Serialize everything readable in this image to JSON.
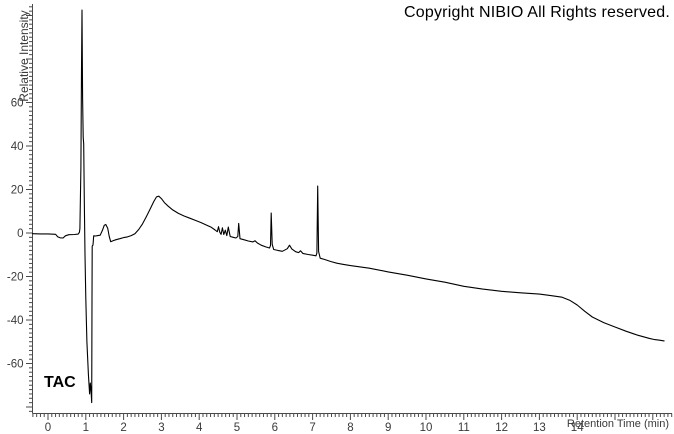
{
  "header": {
    "copyright": "Copyright NIBIO All Rights reserved."
  },
  "labels": {
    "sample": "TAC",
    "y_axis": "Relative Intensity",
    "x_axis": "Retention Time (min)"
  },
  "colors": {
    "background": "#ffffff",
    "trace": "#000000",
    "axis": "#4a4a4a",
    "tick": "#4a4a4a",
    "tick_label": "#3a3a3a",
    "annotation": "#000000"
  },
  "chart_data": {
    "type": "line",
    "title": "",
    "xlabel": "Retention Time (min)",
    "ylabel": "Relative Intensity",
    "xlim": [
      -0.41,
      16.55
    ],
    "ylim": [
      -83,
      105
    ],
    "grid": false,
    "legend": "none",
    "x_labeled_ticks": [
      0,
      1,
      2,
      3,
      4,
      5,
      6,
      7,
      8,
      9,
      10,
      11,
      12,
      13,
      14
    ],
    "x_major_tick_step": 1,
    "x_minor_tick_step": 0.1,
    "y_labeled_ticks": [
      -60,
      -40,
      -20,
      0,
      20,
      40,
      60
    ],
    "y_major_tick_step": 20,
    "y_minor_tick_step": 2,
    "series": [
      {
        "name": "TAC",
        "points": [
          [
            -0.41,
            -0.3
          ],
          [
            -0.2,
            -0.4
          ],
          [
            0.0,
            -0.4
          ],
          [
            0.2,
            -0.6
          ],
          [
            0.26,
            -1.8
          ],
          [
            0.32,
            -2.2
          ],
          [
            0.4,
            -2.3
          ],
          [
            0.46,
            -1.3
          ],
          [
            0.55,
            -0.8
          ],
          [
            0.7,
            -0.7
          ],
          [
            0.8,
            -0.5
          ],
          [
            0.83,
            0.3
          ],
          [
            0.845,
            2.0
          ],
          [
            0.87,
            30
          ],
          [
            0.885,
            75
          ],
          [
            0.9,
            102.5
          ],
          [
            0.915,
            62
          ],
          [
            0.93,
            44
          ],
          [
            0.945,
            41
          ],
          [
            0.96,
            15
          ],
          [
            0.98,
            -10
          ],
          [
            1.0,
            -30
          ],
          [
            1.03,
            -50
          ],
          [
            1.07,
            -65
          ],
          [
            1.1,
            -74
          ],
          [
            1.12,
            -69
          ],
          [
            1.14,
            -73
          ],
          [
            1.155,
            -78
          ],
          [
            1.165,
            -30
          ],
          [
            1.17,
            -6
          ],
          [
            1.19,
            -5.5
          ],
          [
            1.21,
            -1.3
          ],
          [
            1.26,
            -1.4
          ],
          [
            1.32,
            -1.2
          ],
          [
            1.38,
            -1.0
          ],
          [
            1.44,
            1.2
          ],
          [
            1.49,
            3.6
          ],
          [
            1.53,
            3.9
          ],
          [
            1.58,
            2.2
          ],
          [
            1.62,
            -1.5
          ],
          [
            1.66,
            -4.0
          ],
          [
            1.72,
            -3.6
          ],
          [
            1.8,
            -3.1
          ],
          [
            1.9,
            -2.6
          ],
          [
            2.0,
            -2.1
          ],
          [
            2.1,
            -1.8
          ],
          [
            2.2,
            -1.2
          ],
          [
            2.3,
            -0.3
          ],
          [
            2.4,
            1.6
          ],
          [
            2.5,
            4.2
          ],
          [
            2.6,
            7.5
          ],
          [
            2.7,
            11.0
          ],
          [
            2.8,
            14.5
          ],
          [
            2.87,
            16.6
          ],
          [
            2.93,
            16.9
          ],
          [
            3.0,
            15.8
          ],
          [
            3.08,
            14.0
          ],
          [
            3.18,
            12.3
          ],
          [
            3.3,
            10.6
          ],
          [
            3.45,
            9.0
          ],
          [
            3.6,
            7.8
          ],
          [
            3.75,
            6.8
          ],
          [
            3.9,
            5.8
          ],
          [
            4.05,
            4.8
          ],
          [
            4.2,
            3.6
          ],
          [
            4.32,
            2.6
          ],
          [
            4.42,
            1.4
          ],
          [
            4.48,
            0.6
          ],
          [
            4.51,
            2.9
          ],
          [
            4.545,
            0.3
          ],
          [
            4.58,
            -0.6
          ],
          [
            4.615,
            2.4
          ],
          [
            4.65,
            -0.7
          ],
          [
            4.69,
            1.3
          ],
          [
            4.73,
            -1.2
          ],
          [
            4.77,
            2.7
          ],
          [
            4.82,
            -1.6
          ],
          [
            4.9,
            -2.0
          ],
          [
            4.97,
            -2.3
          ],
          [
            5.02,
            -1.6
          ],
          [
            5.045,
            4.4
          ],
          [
            5.08,
            -2.6
          ],
          [
            5.18,
            -3.1
          ],
          [
            5.3,
            -3.7
          ],
          [
            5.42,
            -4.1
          ],
          [
            5.48,
            -3.6
          ],
          [
            5.54,
            -4.6
          ],
          [
            5.64,
            -5.6
          ],
          [
            5.76,
            -6.4
          ],
          [
            5.86,
            -6.9
          ],
          [
            5.885,
            -5.8
          ],
          [
            5.905,
            9.2
          ],
          [
            5.93,
            -5.2
          ],
          [
            5.97,
            -7.6
          ],
          [
            6.08,
            -8.0
          ],
          [
            6.2,
            -8.4
          ],
          [
            6.33,
            -7.2
          ],
          [
            6.39,
            -5.6
          ],
          [
            6.45,
            -7.3
          ],
          [
            6.55,
            -8.6
          ],
          [
            6.63,
            -9.0
          ],
          [
            6.68,
            -8.2
          ],
          [
            6.74,
            -9.4
          ],
          [
            6.88,
            -9.9
          ],
          [
            7.0,
            -10.2
          ],
          [
            7.09,
            -10.5
          ],
          [
            7.115,
            -9.2
          ],
          [
            7.135,
            21.6
          ],
          [
            7.16,
            -8.5
          ],
          [
            7.2,
            -11.6
          ],
          [
            7.32,
            -12.2
          ],
          [
            7.48,
            -13.1
          ],
          [
            7.64,
            -13.9
          ],
          [
            7.8,
            -14.4
          ],
          [
            8.0,
            -15.0
          ],
          [
            8.5,
            -16.2
          ],
          [
            9.0,
            -17.9
          ],
          [
            9.5,
            -19.4
          ],
          [
            10.0,
            -21.1
          ],
          [
            10.5,
            -22.6
          ],
          [
            11.0,
            -24.5
          ],
          [
            11.5,
            -25.8
          ],
          [
            12.0,
            -26.8
          ],
          [
            12.5,
            -27.5
          ],
          [
            13.0,
            -28.1
          ],
          [
            13.3,
            -28.8
          ],
          [
            13.6,
            -29.5
          ],
          [
            13.8,
            -30.9
          ],
          [
            14.0,
            -33.1
          ],
          [
            14.2,
            -36.0
          ],
          [
            14.4,
            -38.6
          ],
          [
            14.7,
            -41.2
          ],
          [
            15.0,
            -43.2
          ],
          [
            15.3,
            -45.2
          ],
          [
            15.6,
            -47.0
          ],
          [
            15.9,
            -48.4
          ],
          [
            16.05,
            -49.0
          ],
          [
            16.18,
            -49.3
          ],
          [
            16.3,
            -49.6
          ]
        ]
      }
    ],
    "annotations": [
      {
        "text": "TAC",
        "position": "bottom-left-inside-plot"
      },
      {
        "text": "Copyright NIBIO All Rights reserved.",
        "position": "top-right"
      }
    ]
  }
}
